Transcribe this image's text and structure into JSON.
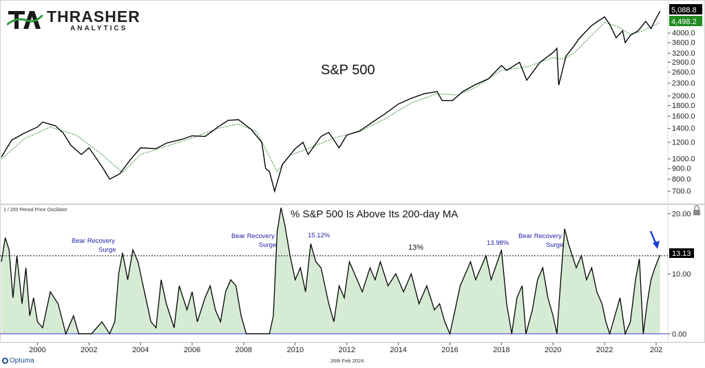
{
  "brand": {
    "name": "THRASHER",
    "sub": "ANALYTICS"
  },
  "footer": {
    "vendor": "Optuma",
    "date": "26th Feb 2024"
  },
  "top_panel": {
    "title": "S&P 500",
    "last_price_label": "5,088.8",
    "ma_label": "4,498.2",
    "price_color": "#000000",
    "ma_color": "#2e8b2e",
    "ma_badge_color": "#228b22",
    "y_ticks": [
      "4000.0",
      "3600.0",
      "3200.0",
      "2900.0",
      "2600.0",
      "2300.0",
      "2000.0",
      "1800.0",
      "1600.0",
      "1400.0",
      "1200.0",
      "1000.0",
      "900.0",
      "800.0",
      "700.0"
    ]
  },
  "bottom_panel": {
    "indicator_label": "1 / 200 Period Price Oscillator",
    "title": "% S&P 500 Is Above Its 200-day MA",
    "threshold_label": "13%",
    "last_value_label": "13.13",
    "fill_color": "#d6ebd3",
    "zero_line_color": "#3a3ad6",
    "annotation_color": "#2222aa",
    "y_ticks": [
      "20.00",
      "10.00",
      "0.00"
    ],
    "annotations": [
      {
        "line1": "Bear Recovery",
        "line2": "Surge"
      },
      {
        "line1": "Bear Recovery",
        "line2": "Surge"
      },
      {
        "line1": "15.12%",
        "line2": ""
      },
      {
        "line1": "13.98%",
        "line2": ""
      },
      {
        "line1": "Bear Recovery",
        "line2": "Surge"
      }
    ]
  },
  "x_axis": {
    "ticks": [
      "2000",
      "2002",
      "2004",
      "2006",
      "2008",
      "2010",
      "2012",
      "2014",
      "2016",
      "2018",
      "2020",
      "2022",
      "202"
    ]
  },
  "chart_data": [
    {
      "type": "line",
      "title": "S&P 500",
      "scale": "log",
      "ylim": [
        630,
        5500
      ],
      "xlim": [
        1998.6,
        2024.4
      ],
      "series": [
        {
          "name": "",
          "role": "price",
          "x": [
            1998.6,
            1999.0,
            1999.5,
            2000.0,
            2000.2,
            2000.7,
            2001.0,
            2001.3,
            2001.7,
            2002.0,
            2002.5,
            2002.8,
            2003.2,
            2003.6,
            2004.0,
            2004.6,
            2005.0,
            2005.6,
            2006.0,
            2006.5,
            2007.0,
            2007.4,
            2007.8,
            2008.3,
            2008.7,
            2008.85,
            2009.0,
            2009.2,
            2009.5,
            2010.0,
            2010.3,
            2010.5,
            2011.0,
            2011.3,
            2011.7,
            2012.0,
            2012.5,
            2013.0,
            2013.5,
            2014.0,
            2014.5,
            2015.0,
            2015.5,
            2015.7,
            2016.1,
            2016.5,
            2017.0,
            2017.5,
            2018.0,
            2018.2,
            2018.7,
            2018.98,
            2019.5,
            2020.0,
            2020.15,
            2020.22,
            2020.5,
            2020.8,
            2021.0,
            2021.5,
            2022.0,
            2022.2,
            2022.45,
            2022.7,
            2022.8,
            2023.0,
            2023.3,
            2023.6,
            2023.8,
            2023.95,
            2024.15
          ],
          "y": [
            1020,
            1230,
            1330,
            1420,
            1500,
            1440,
            1330,
            1160,
            1050,
            1130,
            920,
            800,
            850,
            990,
            1130,
            1120,
            1190,
            1240,
            1290,
            1280,
            1420,
            1530,
            1540,
            1380,
            1200,
            900,
            870,
            700,
            940,
            1120,
            1200,
            1050,
            1280,
            1340,
            1130,
            1300,
            1360,
            1500,
            1650,
            1830,
            1950,
            2050,
            2100,
            1900,
            1900,
            2100,
            2270,
            2420,
            2800,
            2650,
            2900,
            2380,
            2900,
            3230,
            3380,
            2250,
            3100,
            3450,
            3750,
            4350,
            4780,
            4400,
            3800,
            4100,
            3600,
            3900,
            4100,
            4550,
            4200,
            4580,
            5088.8
          ]
        },
        {
          "name": "",
          "role": "ma",
          "x": [
            1998.6,
            1999.5,
            2000.5,
            2001.5,
            2002.5,
            2003.3,
            2004.0,
            2005.0,
            2006.0,
            2007.0,
            2007.8,
            2008.5,
            2009.3,
            2009.8,
            2010.5,
            2011.5,
            2012.5,
            2013.5,
            2014.5,
            2015.5,
            2016.3,
            2017.0,
            2018.0,
            2019.0,
            2020.0,
            2020.4,
            2020.8,
            2021.5,
            2022.0,
            2022.5,
            2023.0,
            2023.5,
            2024.15
          ],
          "y": [
            1000,
            1250,
            1420,
            1300,
            1050,
            860,
            1050,
            1150,
            1260,
            1400,
            1470,
            1350,
            870,
            1040,
            1120,
            1260,
            1350,
            1560,
            1850,
            2050,
            2020,
            2200,
            2650,
            2760,
            3050,
            3000,
            3200,
            3900,
            4500,
            4300,
            3950,
            4100,
            4498.2
          ]
        }
      ]
    },
    {
      "type": "area",
      "title": "% S&P 500 Is Above Its 200-day MA",
      "ylim": [
        -1,
        21
      ],
      "xlim": [
        1998.6,
        2024.4
      ],
      "threshold": 13,
      "series": [
        {
          "name": "",
          "x": [
            1998.6,
            1998.75,
            1998.9,
            1999.05,
            1999.2,
            1999.4,
            1999.55,
            1999.7,
            1999.85,
            2000.0,
            2000.2,
            2000.5,
            2000.8,
            2001.1,
            2001.4,
            2001.6,
            2001.8,
            2002.1,
            2002.5,
            2002.8,
            2003.0,
            2003.15,
            2003.3,
            2003.5,
            2003.7,
            2003.9,
            2004.1,
            2004.4,
            2004.6,
            2004.8,
            2005.0,
            2005.3,
            2005.5,
            2005.8,
            2006.0,
            2006.2,
            2006.5,
            2006.7,
            2006.9,
            2007.1,
            2007.3,
            2007.5,
            2007.7,
            2007.9,
            2008.1,
            2008.4,
            2008.7,
            2009.0,
            2009.15,
            2009.3,
            2009.45,
            2009.6,
            2009.8,
            2010.0,
            2010.2,
            2010.4,
            2010.6,
            2010.8,
            2011.0,
            2011.3,
            2011.5,
            2011.7,
            2011.9,
            2012.1,
            2012.3,
            2012.6,
            2012.9,
            2013.1,
            2013.3,
            2013.6,
            2013.9,
            2014.2,
            2014.5,
            2014.8,
            2015.1,
            2015.4,
            2015.6,
            2015.8,
            2016.0,
            2016.2,
            2016.4,
            2016.6,
            2016.8,
            2017.0,
            2017.2,
            2017.4,
            2017.6,
            2017.8,
            2018.0,
            2018.2,
            2018.4,
            2018.6,
            2018.8,
            2018.95,
            2019.2,
            2019.4,
            2019.6,
            2019.8,
            2020.0,
            2020.15,
            2020.3,
            2020.45,
            2020.6,
            2020.75,
            2020.9,
            2021.1,
            2021.3,
            2021.5,
            2021.7,
            2021.9,
            2022.05,
            2022.2,
            2022.4,
            2022.6,
            2022.8,
            2023.0,
            2023.2,
            2023.35,
            2023.5,
            2023.65,
            2023.8,
            2023.95,
            2024.15
          ],
          "y": [
            12,
            16,
            14,
            6,
            13,
            5,
            11,
            3,
            6,
            2,
            1,
            7,
            5,
            0,
            3,
            0,
            0,
            0,
            2,
            0,
            2,
            10,
            13.5,
            9,
            14,
            12,
            8,
            2,
            1,
            9,
            5,
            1,
            8,
            4,
            7,
            2,
            6,
            8,
            4,
            2,
            7,
            9,
            8,
            3,
            0,
            0,
            0,
            0,
            3,
            17,
            21,
            18,
            13,
            9,
            11,
            7,
            15,
            12,
            11,
            5,
            2,
            8,
            6,
            12,
            10,
            7,
            11,
            9,
            12,
            8,
            10,
            7,
            10,
            5,
            8,
            4,
            5,
            2,
            0,
            4,
            8,
            10,
            12,
            9,
            11,
            13,
            9,
            11.5,
            13.98,
            5,
            0,
            6,
            8,
            0,
            4,
            9,
            11,
            6,
            3,
            0,
            9,
            17.5,
            15,
            13,
            11,
            13,
            9,
            11,
            7,
            5,
            2,
            0,
            3,
            6,
            0,
            2,
            9,
            12.5,
            0,
            5,
            9,
            11,
            13.13
          ]
        }
      ]
    }
  ]
}
